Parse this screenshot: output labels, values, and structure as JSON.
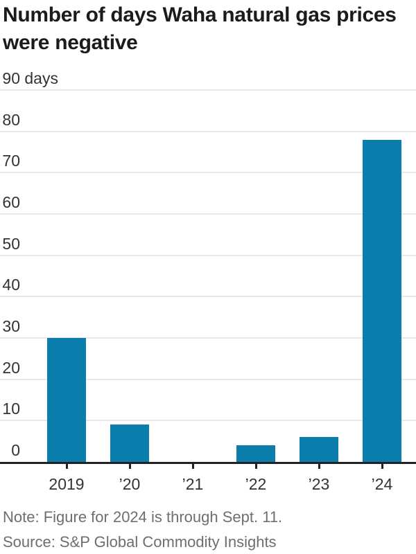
{
  "chart_data": {
    "type": "bar",
    "title_lines": [
      "Number of days Waha natural gas prices",
      "were negative"
    ],
    "title": "Number of days Waha natural gas prices were negative",
    "categories": [
      "2019",
      "’20",
      "’21",
      "’22",
      "’23",
      "’24"
    ],
    "values": [
      30,
      9,
      0,
      4,
      6,
      78
    ],
    "y_ticks": [
      90,
      80,
      70,
      60,
      50,
      40,
      30,
      20,
      10,
      0
    ],
    "y_top_suffix": " days",
    "ylim": [
      0,
      90
    ],
    "grid": true,
    "legend": false,
    "xlabel": "",
    "ylabel": "days",
    "note": "Note: Figure for 2024 is through Sept. 11.",
    "source": "Source: S&P Global Commodity Insights",
    "colors": {
      "bar": "#0b7dac",
      "grid": "#e7e7e7",
      "axis": "#222222",
      "tick_label": "#333333",
      "title": "#1b1b1b",
      "note": "#6e6e6e"
    }
  }
}
